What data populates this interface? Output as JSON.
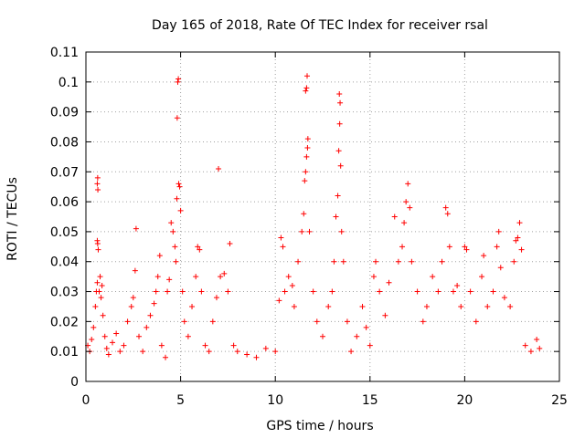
{
  "chart_data": {
    "type": "scatter",
    "title": "Day 165 of 2018, Rate Of TEC Index for receiver rsal",
    "xlabel": "GPS time / hours",
    "ylabel": "ROTI / TECUs",
    "xlim": [
      0,
      25
    ],
    "ylim": [
      0,
      0.11
    ],
    "xticks": [
      0,
      5,
      10,
      15,
      20,
      25
    ],
    "xtick_labels": [
      "0",
      "5",
      "10",
      "15",
      "20",
      "25"
    ],
    "yticks": [
      0,
      0.01,
      0.02,
      0.03,
      0.04,
      0.05,
      0.06,
      0.07,
      0.08,
      0.09,
      0.1,
      0.11
    ],
    "ytick_labels": [
      "0",
      "0.01",
      "0.02",
      "0.03",
      "0.04",
      "0.05",
      "0.06",
      "0.07",
      "0.08",
      "0.09",
      "0.1",
      "0.11"
    ],
    "grid": true,
    "marker": "+",
    "color": "#ff0000",
    "series": [
      {
        "points": [
          [
            0.1,
            0.012
          ],
          [
            0.2,
            0.01
          ],
          [
            0.3,
            0.014
          ],
          [
            0.4,
            0.018
          ],
          [
            0.5,
            0.025
          ],
          [
            0.55,
            0.03
          ],
          [
            0.6,
            0.033
          ],
          [
            0.6,
            0.047
          ],
          [
            0.62,
            0.046
          ],
          [
            0.65,
            0.044
          ],
          [
            0.6,
            0.066
          ],
          [
            0.62,
            0.068
          ],
          [
            0.63,
            0.064
          ],
          [
            0.7,
            0.03
          ],
          [
            0.75,
            0.035
          ],
          [
            0.8,
            0.028
          ],
          [
            0.85,
            0.032
          ],
          [
            0.9,
            0.022
          ],
          [
            1.0,
            0.015
          ],
          [
            1.1,
            0.011
          ],
          [
            1.2,
            0.009
          ],
          [
            1.4,
            0.013
          ],
          [
            1.6,
            0.016
          ],
          [
            1.8,
            0.01
          ],
          [
            2.0,
            0.012
          ],
          [
            2.2,
            0.02
          ],
          [
            2.4,
            0.025
          ],
          [
            2.5,
            0.028
          ],
          [
            2.6,
            0.037
          ],
          [
            2.65,
            0.051
          ],
          [
            2.8,
            0.015
          ],
          [
            3.0,
            0.01
          ],
          [
            3.2,
            0.018
          ],
          [
            3.4,
            0.022
          ],
          [
            3.6,
            0.026
          ],
          [
            3.7,
            0.03
          ],
          [
            3.8,
            0.035
          ],
          [
            3.9,
            0.042
          ],
          [
            4.0,
            0.012
          ],
          [
            4.2,
            0.008
          ],
          [
            4.3,
            0.03
          ],
          [
            4.4,
            0.034
          ],
          [
            4.5,
            0.053
          ],
          [
            4.6,
            0.05
          ],
          [
            4.7,
            0.045
          ],
          [
            4.75,
            0.04
          ],
          [
            4.8,
            0.061
          ],
          [
            4.82,
            0.088
          ],
          [
            4.85,
            0.1
          ],
          [
            4.88,
            0.101
          ],
          [
            4.9,
            0.066
          ],
          [
            4.95,
            0.065
          ],
          [
            5.0,
            0.057
          ],
          [
            5.1,
            0.03
          ],
          [
            5.2,
            0.02
          ],
          [
            5.4,
            0.015
          ],
          [
            5.6,
            0.025
          ],
          [
            5.8,
            0.035
          ],
          [
            5.9,
            0.045
          ],
          [
            6.0,
            0.044
          ],
          [
            6.1,
            0.03
          ],
          [
            6.3,
            0.012
          ],
          [
            6.5,
            0.01
          ],
          [
            6.7,
            0.02
          ],
          [
            6.9,
            0.028
          ],
          [
            7.0,
            0.071
          ],
          [
            7.1,
            0.035
          ],
          [
            7.3,
            0.036
          ],
          [
            7.5,
            0.03
          ],
          [
            7.6,
            0.046
          ],
          [
            7.8,
            0.012
          ],
          [
            8.0,
            0.01
          ],
          [
            8.5,
            0.009
          ],
          [
            9.0,
            0.008
          ],
          [
            9.5,
            0.011
          ],
          [
            10.0,
            0.01
          ],
          [
            10.2,
            0.027
          ],
          [
            10.3,
            0.048
          ],
          [
            10.4,
            0.045
          ],
          [
            10.5,
            0.03
          ],
          [
            10.7,
            0.035
          ],
          [
            10.9,
            0.032
          ],
          [
            11.0,
            0.025
          ],
          [
            11.2,
            0.04
          ],
          [
            11.4,
            0.05
          ],
          [
            11.5,
            0.056
          ],
          [
            11.55,
            0.067
          ],
          [
            11.6,
            0.07
          ],
          [
            11.65,
            0.075
          ],
          [
            11.7,
            0.078
          ],
          [
            11.72,
            0.081
          ],
          [
            11.6,
            0.097
          ],
          [
            11.65,
            0.098
          ],
          [
            11.68,
            0.102
          ],
          [
            11.8,
            0.05
          ],
          [
            12.0,
            0.03
          ],
          [
            12.2,
            0.02
          ],
          [
            12.5,
            0.015
          ],
          [
            12.8,
            0.025
          ],
          [
            13.0,
            0.03
          ],
          [
            13.1,
            0.04
          ],
          [
            13.2,
            0.055
          ],
          [
            13.3,
            0.062
          ],
          [
            13.35,
            0.077
          ],
          [
            13.4,
            0.086
          ],
          [
            13.42,
            0.093
          ],
          [
            13.38,
            0.096
          ],
          [
            13.45,
            0.072
          ],
          [
            13.5,
            0.05
          ],
          [
            13.6,
            0.04
          ],
          [
            13.8,
            0.02
          ],
          [
            14.0,
            0.01
          ],
          [
            14.3,
            0.015
          ],
          [
            14.6,
            0.025
          ],
          [
            14.8,
            0.018
          ],
          [
            15.0,
            0.012
          ],
          [
            15.2,
            0.035
          ],
          [
            15.3,
            0.04
          ],
          [
            15.5,
            0.03
          ],
          [
            15.8,
            0.022
          ],
          [
            16.0,
            0.033
          ],
          [
            16.3,
            0.055
          ],
          [
            16.5,
            0.04
          ],
          [
            16.7,
            0.045
          ],
          [
            16.8,
            0.053
          ],
          [
            16.9,
            0.06
          ],
          [
            17.0,
            0.066
          ],
          [
            17.1,
            0.058
          ],
          [
            17.2,
            0.04
          ],
          [
            17.5,
            0.03
          ],
          [
            17.8,
            0.02
          ],
          [
            18.0,
            0.025
          ],
          [
            18.3,
            0.035
          ],
          [
            18.6,
            0.03
          ],
          [
            18.8,
            0.04
          ],
          [
            19.0,
            0.058
          ],
          [
            19.1,
            0.056
          ],
          [
            19.2,
            0.045
          ],
          [
            19.4,
            0.03
          ],
          [
            19.6,
            0.032
          ],
          [
            19.8,
            0.025
          ],
          [
            20.0,
            0.045
          ],
          [
            20.1,
            0.044
          ],
          [
            20.3,
            0.03
          ],
          [
            20.6,
            0.02
          ],
          [
            20.9,
            0.035
          ],
          [
            21.0,
            0.042
          ],
          [
            21.2,
            0.025
          ],
          [
            21.5,
            0.03
          ],
          [
            21.7,
            0.045
          ],
          [
            21.8,
            0.05
          ],
          [
            21.9,
            0.038
          ],
          [
            22.1,
            0.028
          ],
          [
            22.4,
            0.025
          ],
          [
            22.6,
            0.04
          ],
          [
            22.7,
            0.047
          ],
          [
            22.8,
            0.048
          ],
          [
            22.9,
            0.053
          ],
          [
            23.0,
            0.044
          ],
          [
            23.2,
            0.012
          ],
          [
            23.5,
            0.01
          ],
          [
            23.8,
            0.014
          ],
          [
            23.95,
            0.011
          ]
        ]
      }
    ]
  }
}
